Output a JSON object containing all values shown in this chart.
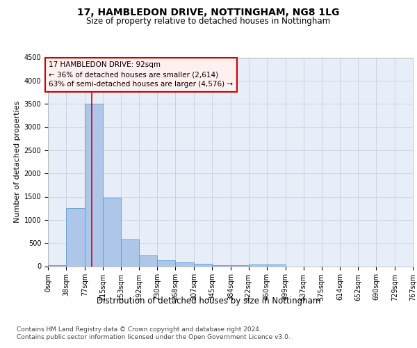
{
  "title": "17, HAMBLEDON DRIVE, NOTTINGHAM, NG8 1LG",
  "subtitle": "Size of property relative to detached houses in Nottingham",
  "xlabel": "Distribution of detached houses by size in Nottingham",
  "ylabel": "Number of detached properties",
  "bin_labels": [
    "0sqm",
    "38sqm",
    "77sqm",
    "115sqm",
    "153sqm",
    "192sqm",
    "230sqm",
    "268sqm",
    "307sqm",
    "345sqm",
    "384sqm",
    "422sqm",
    "460sqm",
    "499sqm",
    "537sqm",
    "575sqm",
    "614sqm",
    "652sqm",
    "690sqm",
    "729sqm",
    "767sqm"
  ],
  "bin_edges": [
    0,
    38,
    77,
    115,
    153,
    192,
    230,
    268,
    307,
    345,
    384,
    422,
    460,
    499,
    537,
    575,
    614,
    652,
    690,
    729,
    767
  ],
  "bar_heights": [
    30,
    1260,
    3500,
    1480,
    580,
    240,
    130,
    80,
    50,
    25,
    20,
    35,
    40,
    0,
    0,
    0,
    0,
    0,
    0,
    0
  ],
  "bar_color": "#aec6e8",
  "bar_edge_color": "#5b9bd5",
  "grid_color": "#c8d4e8",
  "background_color": "#e8eef8",
  "property_size": 92,
  "red_line_color": "#cc0000",
  "annotation_title": "17 HAMBLEDON DRIVE: 92sqm",
  "annotation_line1": "← 36% of detached houses are smaller (2,614)",
  "annotation_line2": "63% of semi-detached houses are larger (4,576) →",
  "annotation_box_color": "#fff0f0",
  "annotation_border_color": "#cc0000",
  "ylim": [
    0,
    4500
  ],
  "yticks": [
    0,
    500,
    1000,
    1500,
    2000,
    2500,
    3000,
    3500,
    4000,
    4500
  ],
  "footer_line1": "Contains HM Land Registry data © Crown copyright and database right 2024.",
  "footer_line2": "Contains public sector information licensed under the Open Government Licence v3.0.",
  "title_fontsize": 10,
  "subtitle_fontsize": 8.5,
  "xlabel_fontsize": 8.5,
  "ylabel_fontsize": 8,
  "tick_fontsize": 7,
  "annotation_fontsize": 7.5,
  "footer_fontsize": 6.5
}
